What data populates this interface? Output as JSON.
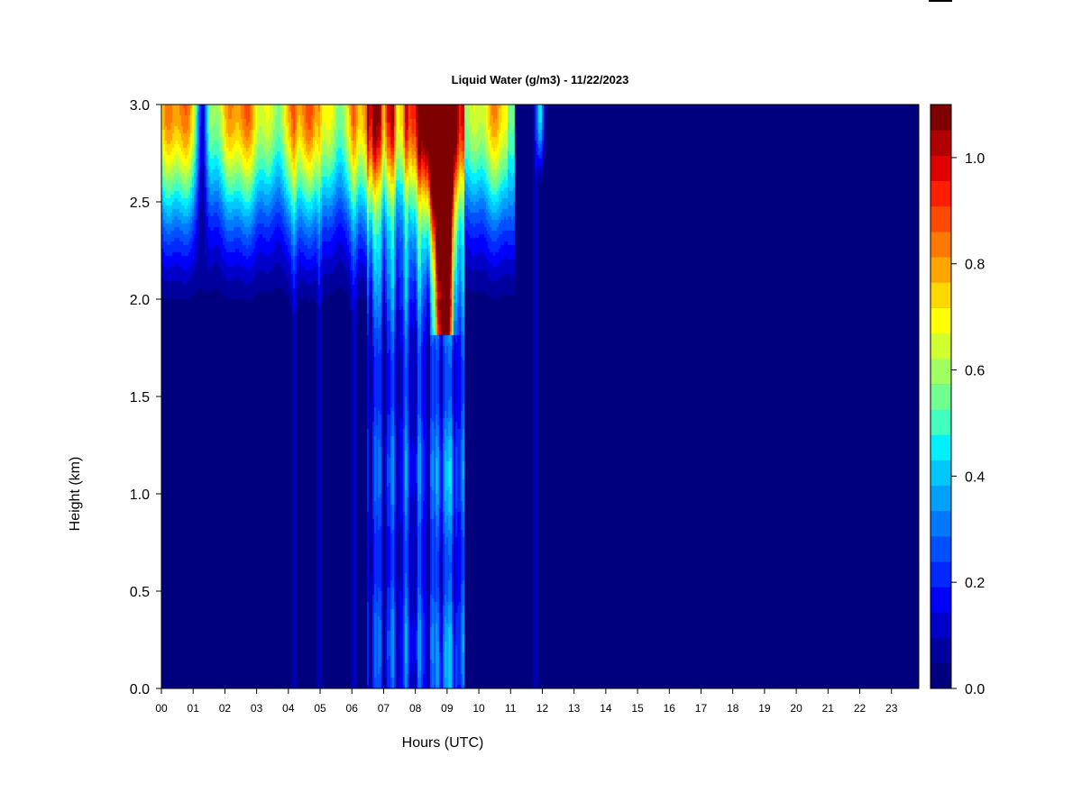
{
  "chart_data": {
    "type": "heatmap",
    "title": "Liquid Water (g/m3) - 11/22/2023",
    "xlabel": "Hours (UTC)",
    "ylabel": "Height (km)",
    "xlim": [
      0,
      24
    ],
    "ylim": [
      0,
      3.0
    ],
    "x_ticks": [
      "00",
      "01",
      "02",
      "03",
      "04",
      "05",
      "06",
      "07",
      "08",
      "09",
      "10",
      "11",
      "12",
      "13",
      "14",
      "15",
      "16",
      "17",
      "18",
      "19",
      "20",
      "21",
      "22",
      "23"
    ],
    "y_ticks": [
      "0.0",
      "0.5",
      "1.0",
      "1.5",
      "2.0",
      "2.5",
      "3.0"
    ],
    "colorbar": {
      "range": [
        0.0,
        1.1
      ],
      "ticks": [
        "0.0",
        "0.2",
        "0.4",
        "0.6",
        "0.8",
        "1.0"
      ],
      "colors": [
        "#00007f",
        "#00009f",
        "#0000c8",
        "#0000ff",
        "#0028ff",
        "#0050ff",
        "#0078ff",
        "#00a0ff",
        "#00c8ff",
        "#00f0ff",
        "#40ffbf",
        "#70ff8f",
        "#a0ff60",
        "#d0ff30",
        "#ffff00",
        "#ffd800",
        "#ffa500",
        "#ff7800",
        "#ff4b00",
        "#ff1e00",
        "#e00000",
        "#b00000",
        "#7f0000"
      ]
    },
    "field_description": "Liquid water content by hour and height: enhanced values near 2.5-3.0 km from 00 to ~11 UTC, strongest column (up to ~1.0 g/m3) around 08.5-09.5 UTC extending down to ~1.8 km, moderate values (0.2-0.5) throughout the column 06.5-09.5 UTC, near zero after ~12 UTC."
  }
}
